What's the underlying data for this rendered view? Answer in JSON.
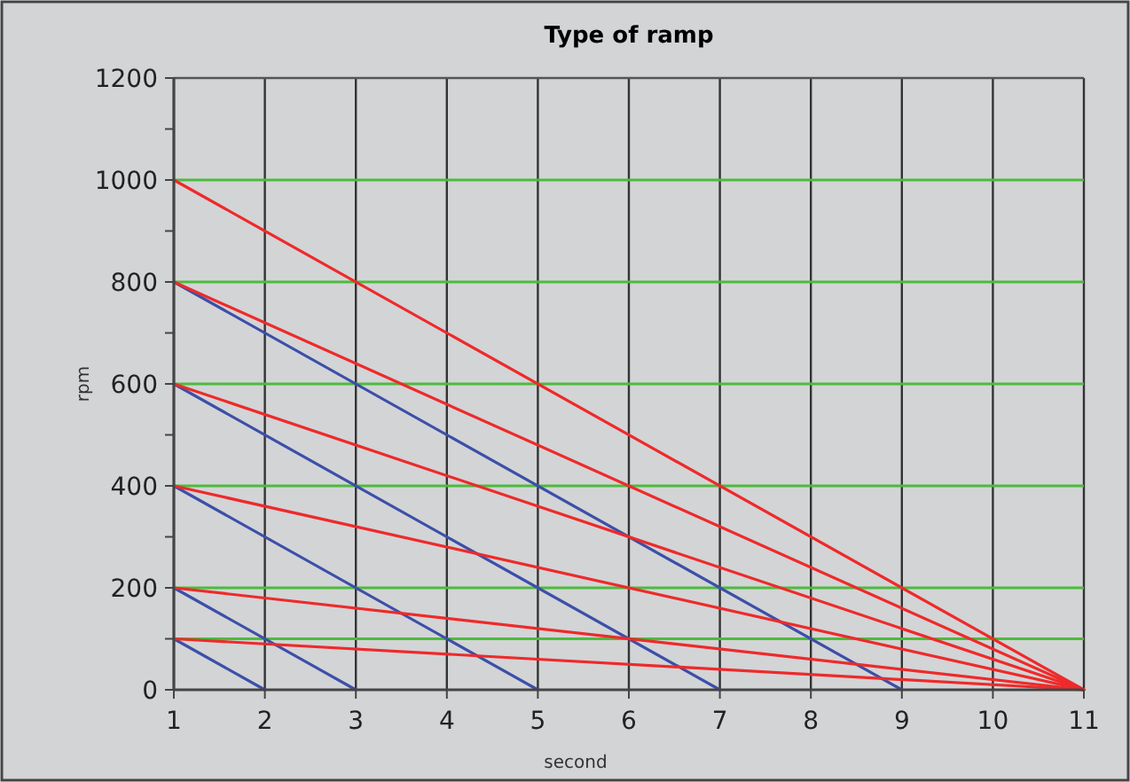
{
  "chart_data": {
    "type": "line",
    "title": "Type of ramp",
    "xlabel": "second",
    "ylabel": "rpm",
    "xlim": [
      1,
      11
    ],
    "xticks": [
      1,
      2,
      3,
      4,
      5,
      6,
      7,
      8,
      9,
      10,
      11
    ],
    "ylim": [
      0,
      1200
    ],
    "yticks": [
      0,
      {
        "value": 100,
        "label": null
      },
      200,
      {
        "value": 300,
        "label": null
      },
      400,
      {
        "value": 500,
        "label": null
      },
      600,
      {
        "value": 700,
        "label": null
      },
      800,
      {
        "value": 900,
        "label": null
      },
      1000,
      {
        "value": 1100,
        "label": null
      },
      1200
    ],
    "grid": "x",
    "line_style": "solid",
    "marker": "none",
    "ref_lines": [
      {
        "axis": "y",
        "value": 100,
        "color": "#4cbb3c"
      },
      {
        "axis": "y",
        "value": 200,
        "color": "#4cbb3c"
      },
      {
        "axis": "y",
        "value": 400,
        "color": "#4cbb3c"
      },
      {
        "axis": "y",
        "value": 600,
        "color": "#4cbb3c"
      },
      {
        "axis": "y",
        "value": 800,
        "color": "#4cbb3c"
      },
      {
        "axis": "y",
        "value": 1000,
        "color": "#4cbb3c"
      }
    ],
    "series": [
      {
        "color": "#3c4fa8",
        "x": [
          1,
          9
        ],
        "values": [
          800,
          0
        ]
      },
      {
        "color": "#3c4fa8",
        "x": [
          1,
          7
        ],
        "values": [
          600,
          0
        ]
      },
      {
        "color": "#3c4fa8",
        "x": [
          1,
          5
        ],
        "values": [
          400,
          0
        ]
      },
      {
        "color": "#3c4fa8",
        "x": [
          1,
          3
        ],
        "values": [
          200,
          0
        ]
      },
      {
        "color": "#3c4fa8",
        "x": [
          1,
          2
        ],
        "values": [
          100,
          0
        ]
      },
      {
        "color": "#ee2a2a",
        "x": [
          1,
          11
        ],
        "values": [
          1000,
          0
        ]
      },
      {
        "color": "#ee2a2a",
        "x": [
          1,
          11
        ],
        "values": [
          800,
          0
        ]
      },
      {
        "color": "#ee2a2a",
        "x": [
          1,
          11
        ],
        "values": [
          600,
          0
        ]
      },
      {
        "color": "#ee2a2a",
        "x": [
          1,
          11
        ],
        "values": [
          400,
          0
        ]
      },
      {
        "color": "#ee2a2a",
        "x": [
          1,
          11
        ],
        "values": [
          200,
          0
        ]
      },
      {
        "color": "#ee2a2a",
        "x": [
          1,
          11
        ],
        "values": [
          100,
          0
        ]
      }
    ]
  }
}
